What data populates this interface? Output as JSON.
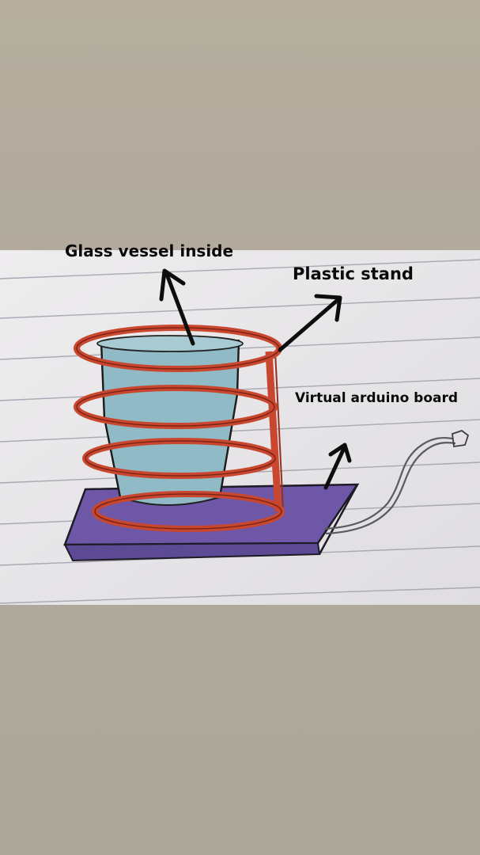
{
  "labels": {
    "glass_vessel": "Glass vessel inside",
    "plastic_stand": "Plastic stand",
    "arduino_board": "Virtual arduino board"
  },
  "colors": {
    "background": "#b1aa9d",
    "paper": "#e6e4e6",
    "ruled_line": "#a9a7b0",
    "stand_red": "#c8472f",
    "glass_blue": "#8fb9c4",
    "board_purple": "#6f58a8",
    "ink": "#111111"
  }
}
